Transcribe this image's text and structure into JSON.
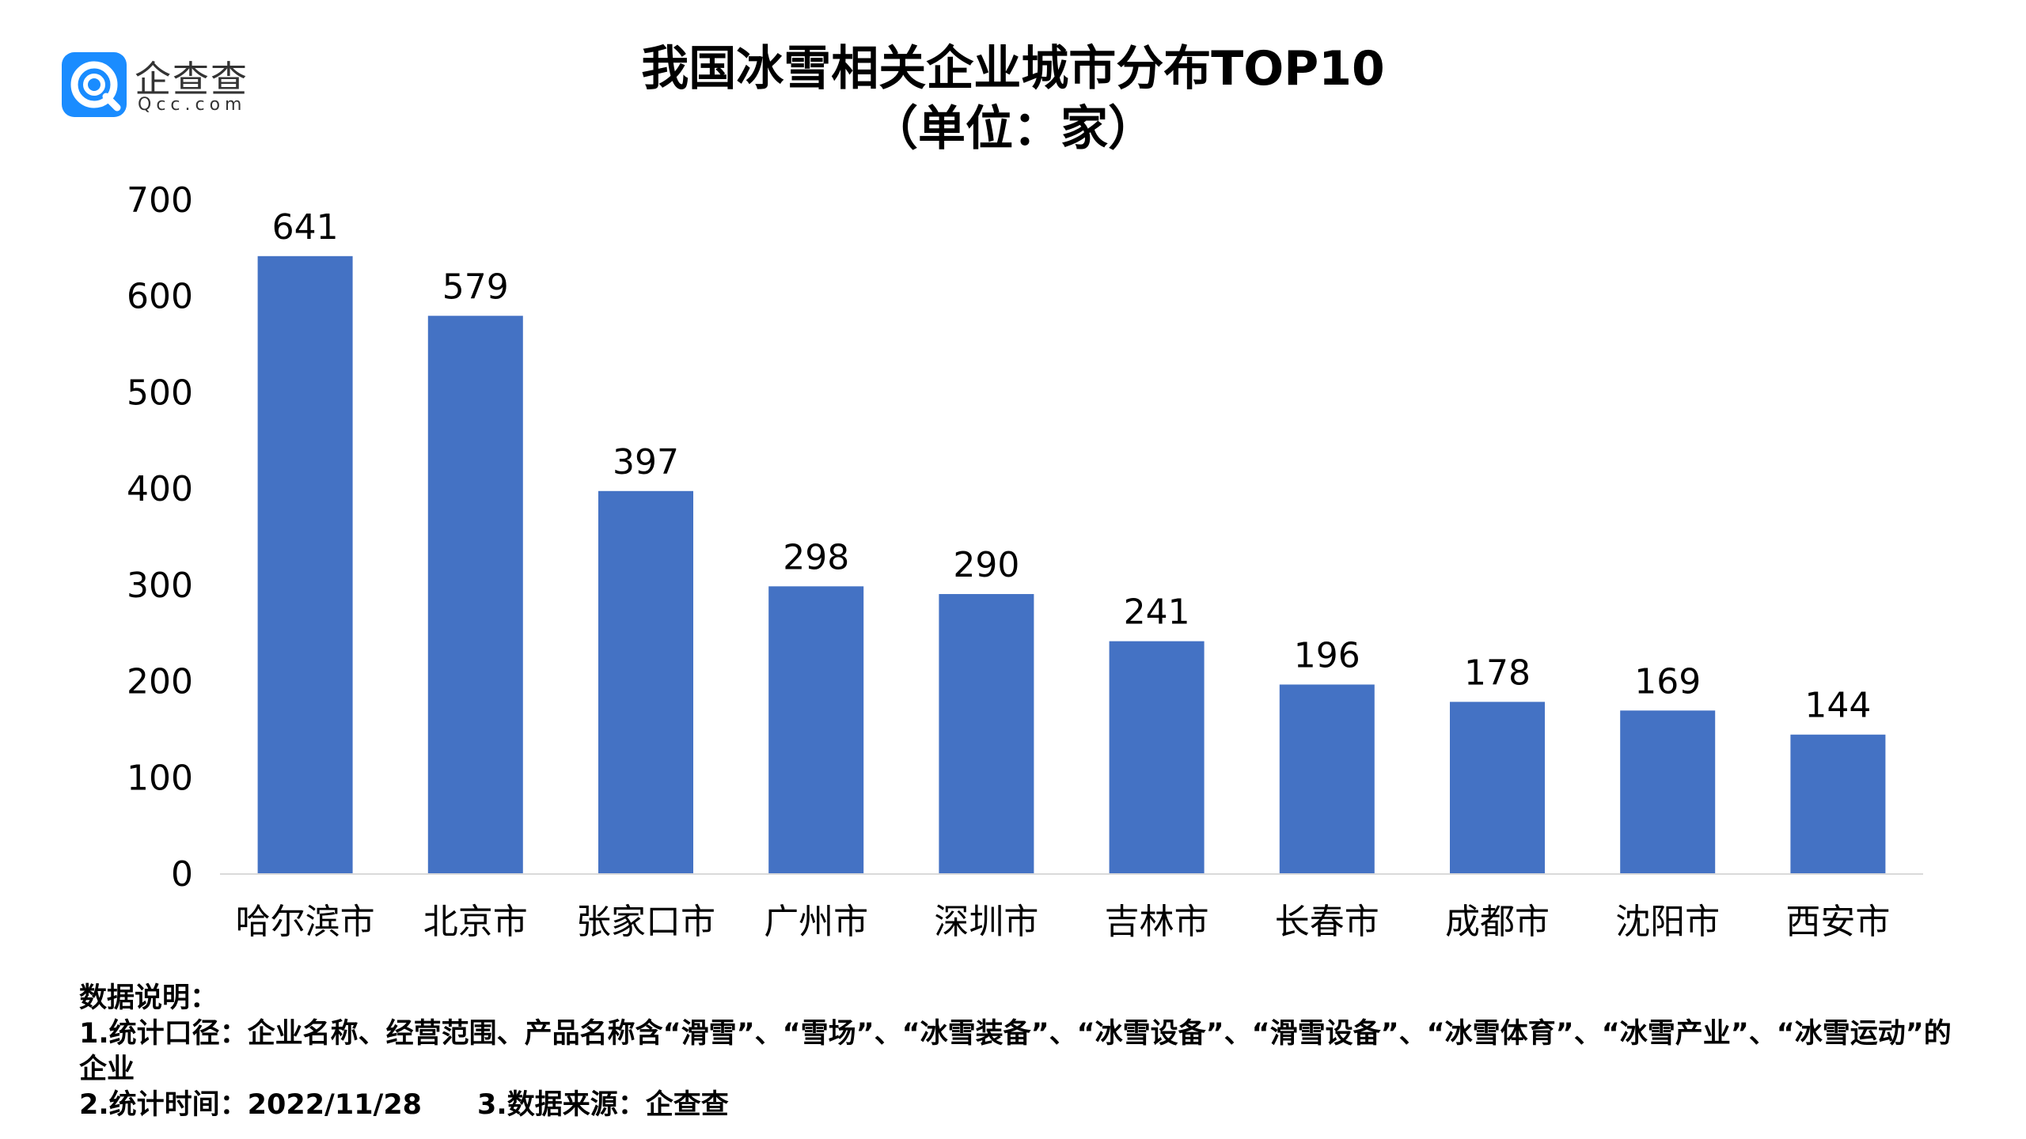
{
  "logo": {
    "name_cn": "企查查",
    "name_en": "Qcc.com",
    "brand_color": "#1a8cff"
  },
  "title_line1": "我国冰雪相关企业城市分布TOP10",
  "title_line2": "（单位：家）",
  "chart_data": {
    "type": "bar",
    "categories": [
      "哈尔滨市",
      "北京市",
      "张家口市",
      "广州市",
      "深圳市",
      "吉林市",
      "长春市",
      "成都市",
      "沈阳市",
      "西安市"
    ],
    "values": [
      641,
      579,
      397,
      298,
      290,
      241,
      196,
      178,
      169,
      144
    ],
    "data_labels": [
      "641",
      "579",
      "397",
      "298",
      "290",
      "241",
      "196",
      "178",
      "169",
      "144"
    ],
    "ylim": [
      0,
      700
    ],
    "yticks": [
      0,
      100,
      200,
      300,
      400,
      500,
      600,
      700
    ],
    "ytick_labels": [
      "0",
      "100",
      "200",
      "300",
      "400",
      "500",
      "600",
      "700"
    ],
    "bar_color": "#4472c4",
    "grid": false,
    "legend": "none"
  },
  "notes": {
    "heading": "数据说明：",
    "line1": "1.统计口径：企业名称、经营范围、产品名称含“滑雪”、“雪场”、“冰雪装备”、“冰雪设备”、“滑雪设备”、“冰雪体育”、“冰雪产业”、“冰雪运动”的企业",
    "line2a": "2.统计时间：2022/11/28",
    "line2b": "3.数据来源：企查查"
  }
}
